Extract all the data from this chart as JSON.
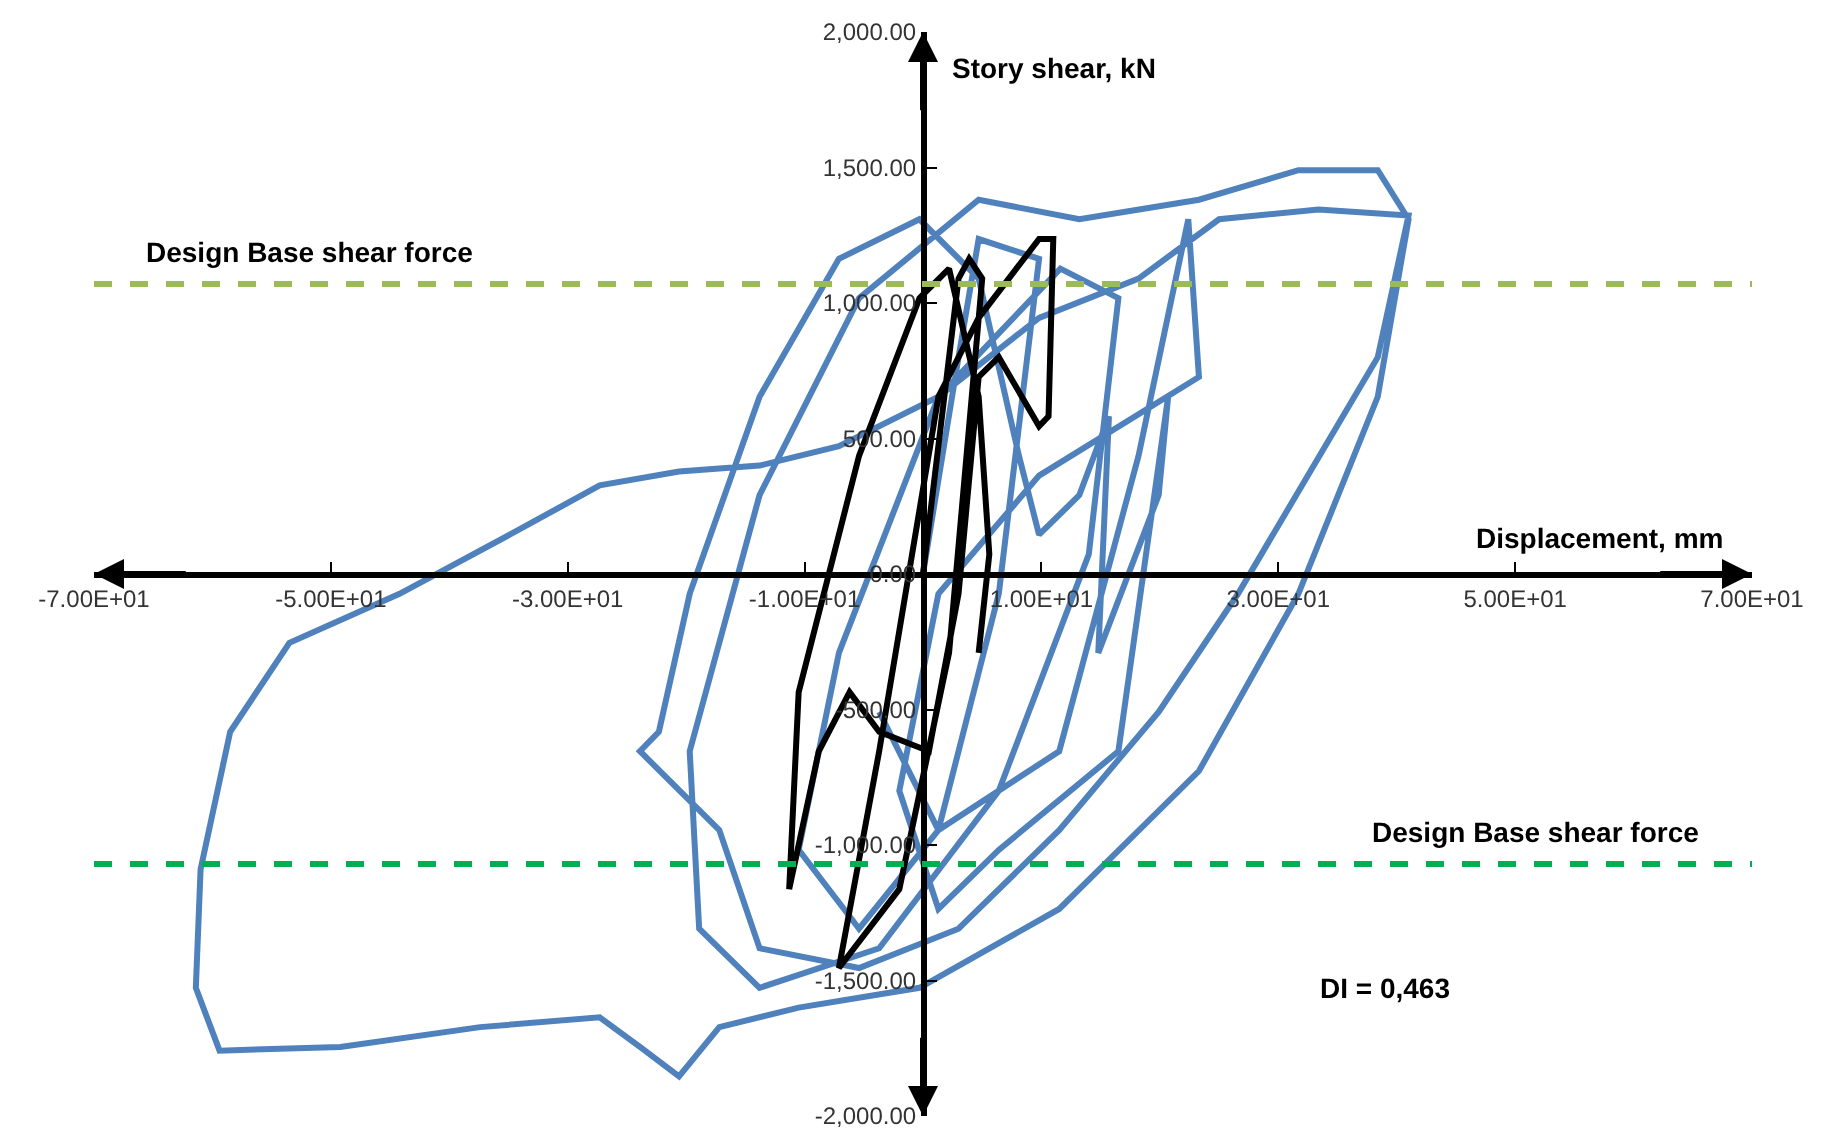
{
  "chart_data": {
    "type": "line",
    "xlabel": "Displacement, mm",
    "ylabel": "Story shear, kN",
    "xlim": [
      -70,
      70
    ],
    "xticks": [
      {
        "value": -70,
        "label": "-7.00E+01"
      },
      {
        "value": -50,
        "label": "-5.00E+01"
      },
      {
        "value": -30,
        "label": "-3.00E+01"
      },
      {
        "value": -10,
        "label": "-1.00E+01"
      },
      {
        "value": 10,
        "label": "1.00E+01"
      },
      {
        "value": 30,
        "label": "3.00E+01"
      },
      {
        "value": 50,
        "label": "5.00E+01"
      },
      {
        "value": 70,
        "label": "7.00E+01"
      }
    ],
    "ylim": [
      -2000,
      2000
    ],
    "yticks": [
      {
        "value": -2000,
        "label": "-2,000.00"
      },
      {
        "value": -1500,
        "label": "-1,500.00"
      },
      {
        "value": -1000,
        "label": "-1,000.00"
      },
      {
        "value": -500,
        "label": "-500.00"
      },
      {
        "value": 0,
        "label": "0.00"
      },
      {
        "value": 500,
        "label": "500.00"
      },
      {
        "value": 1000,
        "label": "1,000.00"
      },
      {
        "value": 1500,
        "label": "1,500.00"
      },
      {
        "value": 2000,
        "label": "2,000.00"
      }
    ],
    "marker": "none",
    "line_style": "solid",
    "series": [
      {
        "color": "#4f81bd",
        "x": [
          0,
          3,
          4.7,
          9.8,
          6.4,
          1.3,
          -5.4,
          -10.5,
          -7.1,
          1.3,
          11.6,
          16.5,
          14,
          6.4,
          -3.7,
          -13.8,
          -18.9,
          -19.7,
          -13.8,
          -5.4,
          4.7,
          13.2,
          23.3,
          31.7,
          38.4,
          41,
          38.4,
          31.7,
          23.3,
          11.5,
          -0.3,
          -10.5,
          -17.2,
          -20.6,
          -23.9,
          -27.3,
          -37.4,
          -49.2,
          -59.4,
          -61.4,
          -61,
          -58.5,
          -53.5,
          -44.2,
          -34.9,
          -27.3,
          -20.6,
          -13.8,
          -7.1,
          1.3,
          9.8,
          18.2,
          25,
          33.4,
          41,
          38.4,
          26.6,
          19.9,
          11.5,
          3,
          -5.4,
          -13.8,
          -17.2,
          -23.9,
          -22.3,
          -19.7,
          -13.8,
          -7.1,
          -0.3,
          4.7,
          8.1,
          9.8,
          13.2,
          15.7,
          14.8,
          19.9,
          20.7,
          16.5,
          6.4,
          1.3,
          -2,
          1.3,
          9.8,
          23.3,
          22.4,
          18.2,
          11.5,
          1.3,
          -3.7
        ],
        "values": [
          0,
          800,
          1236,
          1163,
          -73,
          -945,
          -1309,
          -1018,
          -291,
          654,
          1127,
          1018,
          73,
          -800,
          -1381,
          -1527,
          -1309,
          -654,
          291,
          1018,
          1381,
          1309,
          1381,
          1490,
          1490,
          1309,
          654,
          -73,
          -727,
          -1236,
          -1527,
          -1600,
          -1672,
          -1854,
          -1745,
          -1636,
          -1672,
          -1745,
          -1759,
          -1527,
          -1090,
          -582,
          -254,
          -73,
          145,
          327,
          378,
          400,
          472,
          654,
          945,
          1090,
          1309,
          1345,
          1323,
          800,
          -73,
          -509,
          -945,
          -1309,
          -1454,
          -1381,
          -945,
          -654,
          -582,
          -73,
          654,
          1163,
          1309,
          1090,
          436,
          145,
          291,
          582,
          -291,
          291,
          654,
          -654,
          -1018,
          -1236,
          -800,
          -73,
          363,
          727,
          1309,
          436,
          -654,
          -945,
          -509
        ]
      },
      {
        "color": "#000000",
        "x": [
          0,
          3,
          3.9,
          5,
          2.2,
          -2,
          -7.1,
          -3.7,
          1.3,
          4.7,
          9.8,
          11,
          10.6,
          9.8,
          6.4,
          4.7,
          3,
          0.5,
          -3.7,
          -6.2,
          -8.8,
          -11.3,
          -10.5,
          -5.4,
          -0.3,
          2.2,
          4.7,
          5.6,
          4.7
        ],
        "values": [
          0,
          1090,
          1163,
          1090,
          -291,
          -1163,
          -1454,
          -654,
          654,
          945,
          1236,
          1236,
          582,
          545,
          800,
          727,
          -73,
          -654,
          -582,
          -436,
          -654,
          -1163,
          -436,
          436,
          1018,
          1127,
          654,
          73,
          -291
        ]
      }
    ],
    "ref_lines": [
      {
        "axis": "y",
        "value": 1070,
        "label": "Design Base shear force",
        "color": "#9bbb59",
        "line_style": "dashed"
      },
      {
        "axis": "y",
        "value": -1070,
        "label": "Design Base shear force",
        "color": "#00b050",
        "line_style": "dashed"
      }
    ],
    "annotations": [
      "DI = 0,463"
    ]
  }
}
